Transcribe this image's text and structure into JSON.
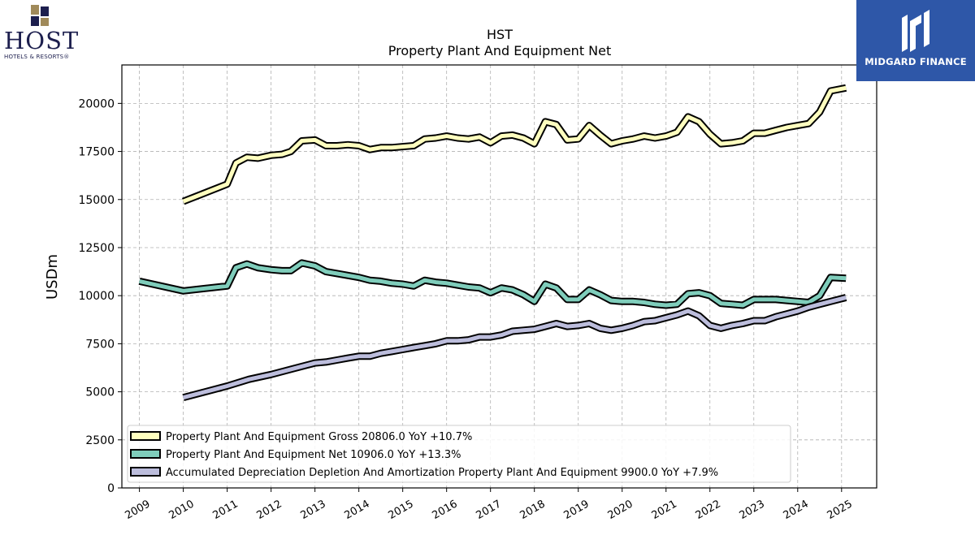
{
  "branding": {
    "left_logo_name": "HOST",
    "left_logo_sub": "HOTELS & RESORTS®",
    "right_logo_name": "MIDGARD FINANCE",
    "host_gold": "#a08a5a",
    "host_navy": "#1d1f4e",
    "midgard_blue": "#2e57a8"
  },
  "chart_data": {
    "type": "line",
    "title": "HST",
    "subtitle": "Property Plant And Equipment Net",
    "ylabel": "USDm",
    "xlabel": "",
    "xlim": [
      2008.6,
      2025.8
    ],
    "ylim": [
      0,
      22000
    ],
    "yticks": [
      0,
      2500,
      5000,
      7500,
      10000,
      12500,
      15000,
      17500,
      20000
    ],
    "xticks": [
      2009,
      2010,
      2011,
      2012,
      2013,
      2014,
      2015,
      2016,
      2017,
      2018,
      2019,
      2020,
      2021,
      2022,
      2023,
      2024,
      2025
    ],
    "grid": true,
    "legend_position": "lower-left",
    "series": [
      {
        "name": "Property Plant And Equipment Gross",
        "legend_label": "Property Plant And Equipment Gross  20806.0 YoY +10.7%",
        "color": "#ffffbf",
        "points": [
          [
            2010.0,
            14900
          ],
          [
            2011.0,
            15800
          ],
          [
            2011.2,
            16900
          ],
          [
            2011.45,
            17200
          ],
          [
            2011.7,
            17150
          ],
          [
            2012.0,
            17300
          ],
          [
            2012.25,
            17350
          ],
          [
            2012.45,
            17500
          ],
          [
            2012.7,
            18050
          ],
          [
            2013.0,
            18100
          ],
          [
            2013.25,
            17800
          ],
          [
            2013.5,
            17800
          ],
          [
            2013.75,
            17850
          ],
          [
            2014.0,
            17800
          ],
          [
            2014.25,
            17600
          ],
          [
            2014.5,
            17700
          ],
          [
            2014.75,
            17700
          ],
          [
            2015.0,
            17750
          ],
          [
            2015.25,
            17800
          ],
          [
            2015.5,
            18150
          ],
          [
            2015.75,
            18200
          ],
          [
            2016.0,
            18300
          ],
          [
            2016.25,
            18200
          ],
          [
            2016.5,
            18150
          ],
          [
            2016.75,
            18250
          ],
          [
            2017.0,
            17950
          ],
          [
            2017.25,
            18300
          ],
          [
            2017.5,
            18350
          ],
          [
            2017.75,
            18200
          ],
          [
            2018.0,
            17900
          ],
          [
            2018.25,
            19050
          ],
          [
            2018.5,
            18900
          ],
          [
            2018.75,
            18100
          ],
          [
            2019.0,
            18150
          ],
          [
            2019.25,
            18850
          ],
          [
            2019.5,
            18350
          ],
          [
            2019.75,
            17900
          ],
          [
            2020.0,
            18050
          ],
          [
            2020.25,
            18150
          ],
          [
            2020.5,
            18300
          ],
          [
            2020.75,
            18200
          ],
          [
            2021.0,
            18300
          ],
          [
            2021.25,
            18500
          ],
          [
            2021.5,
            19300
          ],
          [
            2021.75,
            19050
          ],
          [
            2022.0,
            18400
          ],
          [
            2022.25,
            17900
          ],
          [
            2022.5,
            17950
          ],
          [
            2022.75,
            18050
          ],
          [
            2023.0,
            18450
          ],
          [
            2023.25,
            18450
          ],
          [
            2023.5,
            18600
          ],
          [
            2023.75,
            18750
          ],
          [
            2024.0,
            18850
          ],
          [
            2024.25,
            18950
          ],
          [
            2024.5,
            19550
          ],
          [
            2024.75,
            20650
          ],
          [
            2025.1,
            20806
          ]
        ]
      },
      {
        "name": "Property Plant And Equipment Net",
        "legend_label": "Property Plant And Equipment Net  10906.0 YoY +13.3%",
        "color": "#7fcdbb",
        "points": [
          [
            2009.0,
            10750
          ],
          [
            2010.0,
            10250
          ],
          [
            2011.0,
            10500
          ],
          [
            2011.2,
            11450
          ],
          [
            2011.45,
            11650
          ],
          [
            2011.7,
            11450
          ],
          [
            2012.0,
            11350
          ],
          [
            2012.25,
            11300
          ],
          [
            2012.45,
            11300
          ],
          [
            2012.7,
            11700
          ],
          [
            2013.0,
            11550
          ],
          [
            2013.25,
            11250
          ],
          [
            2013.5,
            11150
          ],
          [
            2013.75,
            11050
          ],
          [
            2014.0,
            10950
          ],
          [
            2014.25,
            10800
          ],
          [
            2014.5,
            10750
          ],
          [
            2014.75,
            10650
          ],
          [
            2015.0,
            10600
          ],
          [
            2015.25,
            10500
          ],
          [
            2015.5,
            10800
          ],
          [
            2015.75,
            10700
          ],
          [
            2016.0,
            10650
          ],
          [
            2016.25,
            10550
          ],
          [
            2016.5,
            10450
          ],
          [
            2016.75,
            10400
          ],
          [
            2017.0,
            10150
          ],
          [
            2017.25,
            10400
          ],
          [
            2017.5,
            10300
          ],
          [
            2017.75,
            10050
          ],
          [
            2018.0,
            9700
          ],
          [
            2018.25,
            10600
          ],
          [
            2018.5,
            10400
          ],
          [
            2018.75,
            9800
          ],
          [
            2019.0,
            9800
          ],
          [
            2019.25,
            10300
          ],
          [
            2019.5,
            10050
          ],
          [
            2019.75,
            9750
          ],
          [
            2020.0,
            9700
          ],
          [
            2020.25,
            9700
          ],
          [
            2020.5,
            9650
          ],
          [
            2020.75,
            9550
          ],
          [
            2021.0,
            9500
          ],
          [
            2021.25,
            9550
          ],
          [
            2021.5,
            10100
          ],
          [
            2021.75,
            10150
          ],
          [
            2022.0,
            10000
          ],
          [
            2022.25,
            9600
          ],
          [
            2022.5,
            9550
          ],
          [
            2022.75,
            9500
          ],
          [
            2023.0,
            9800
          ],
          [
            2023.25,
            9800
          ],
          [
            2023.5,
            9800
          ],
          [
            2023.75,
            9750
          ],
          [
            2024.0,
            9700
          ],
          [
            2024.25,
            9650
          ],
          [
            2024.5,
            10000
          ],
          [
            2024.75,
            10950
          ],
          [
            2025.1,
            10906
          ]
        ]
      },
      {
        "name": "Accumulated Depreciation Depletion And Amortization Property Plant And Equipment",
        "legend_label": "Accumulated Depreciation Depletion And Amortization Property Plant And Equipment  9900.0 YoY +7.9%",
        "color": "#bcbddc",
        "points": [
          [
            2010.0,
            4700
          ],
          [
            2011.0,
            5300
          ],
          [
            2011.5,
            5650
          ],
          [
            2012.0,
            5900
          ],
          [
            2012.5,
            6200
          ],
          [
            2013.0,
            6500
          ],
          [
            2013.25,
            6550
          ],
          [
            2013.5,
            6650
          ],
          [
            2013.75,
            6750
          ],
          [
            2014.0,
            6850
          ],
          [
            2014.25,
            6850
          ],
          [
            2014.5,
            7000
          ],
          [
            2014.75,
            7100
          ],
          [
            2015.0,
            7200
          ],
          [
            2015.25,
            7300
          ],
          [
            2015.5,
            7400
          ],
          [
            2015.75,
            7500
          ],
          [
            2016.0,
            7650
          ],
          [
            2016.25,
            7650
          ],
          [
            2016.5,
            7700
          ],
          [
            2016.75,
            7850
          ],
          [
            2017.0,
            7850
          ],
          [
            2017.25,
            7950
          ],
          [
            2017.5,
            8150
          ],
          [
            2017.75,
            8200
          ],
          [
            2018.0,
            8250
          ],
          [
            2018.25,
            8400
          ],
          [
            2018.5,
            8550
          ],
          [
            2018.75,
            8400
          ],
          [
            2019.0,
            8450
          ],
          [
            2019.25,
            8550
          ],
          [
            2019.5,
            8300
          ],
          [
            2019.75,
            8200
          ],
          [
            2020.0,
            8300
          ],
          [
            2020.25,
            8450
          ],
          [
            2020.5,
            8650
          ],
          [
            2020.75,
            8700
          ],
          [
            2021.0,
            8850
          ],
          [
            2021.25,
            9000
          ],
          [
            2021.5,
            9200
          ],
          [
            2021.75,
            8950
          ],
          [
            2022.0,
            8450
          ],
          [
            2022.25,
            8300
          ],
          [
            2022.5,
            8450
          ],
          [
            2022.75,
            8550
          ],
          [
            2023.0,
            8700
          ],
          [
            2023.25,
            8700
          ],
          [
            2023.5,
            8900
          ],
          [
            2023.75,
            9050
          ],
          [
            2024.0,
            9200
          ],
          [
            2024.25,
            9400
          ],
          [
            2024.5,
            9550
          ],
          [
            2024.75,
            9700
          ],
          [
            2025.1,
            9900
          ]
        ]
      }
    ]
  }
}
